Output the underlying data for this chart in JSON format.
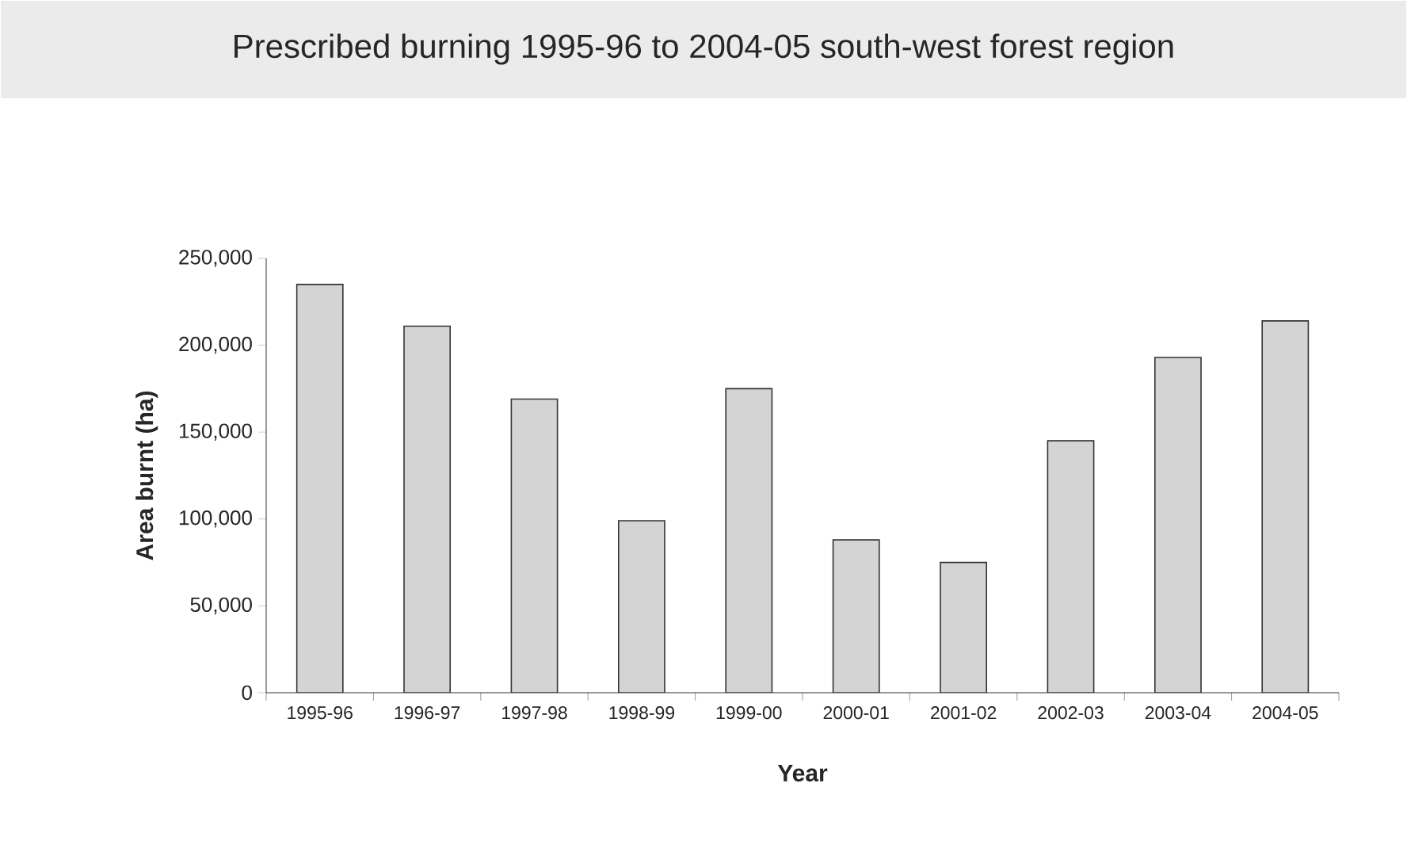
{
  "chart_data": {
    "type": "bar",
    "title": "Prescribed burning 1995-96 to 2004-05 south-west forest region",
    "xlabel": "Year",
    "ylabel": "Area burnt (ha)",
    "categories": [
      "1995-96",
      "1996-97",
      "1997-98",
      "1998-99",
      "1999-00",
      "2000-01",
      "2001-02",
      "2002-03",
      "2003-04",
      "2004-05"
    ],
    "values": [
      235000,
      211000,
      169000,
      99000,
      175000,
      88000,
      75000,
      145000,
      193000,
      214000
    ],
    "color": "#d4d4d4",
    "ylim": [
      0,
      250000
    ],
    "yticks": [
      0,
      {
        "value": 50000,
        "label": "50,000"
      },
      {
        "value": 100000,
        "label": "100,000"
      },
      {
        "value": 150000,
        "label": "150,000"
      },
      {
        "value": 200000,
        "label": "200,000"
      },
      {
        "value": 250000,
        "label": "250,000"
      }
    ],
    "grid": false
  }
}
